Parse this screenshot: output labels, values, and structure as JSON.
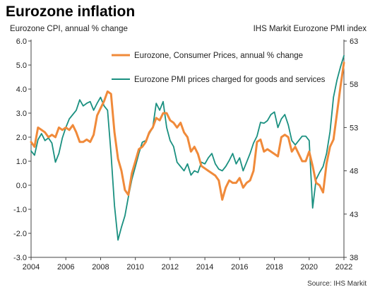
{
  "chart_data": {
    "type": "line",
    "title": "Eurozone inflation",
    "left_axis_label": "Eurozone CPI, annual % change",
    "right_axis_label": "IHS Markit Eurozone PMI index",
    "source": "Source: IHS Markit",
    "x_ticks": [
      "2004",
      "2006",
      "2008",
      "2010",
      "2012",
      "2014",
      "2016",
      "2018",
      "2020",
      "2022"
    ],
    "xlim": [
      2004.0,
      2022.0
    ],
    "ylim_left": [
      -3.0,
      6.0
    ],
    "ylim_right": [
      38,
      63
    ],
    "y_ticks_left": [
      "-3.0",
      "-2.0",
      "-1.0",
      "0.0",
      "1.0",
      "2.0",
      "3.0",
      "4.0",
      "5.0",
      "6.0"
    ],
    "y_ticks_right": [
      "38",
      "43",
      "48",
      "53",
      "58",
      "63"
    ],
    "grid": false,
    "legend_position": "top-right",
    "series": [
      {
        "name": "Eurozone, Consumer Prices, annual % change",
        "axis": "left",
        "color": "#f08a3a",
        "x": [
          2004.0,
          2004.2,
          2004.4,
          2004.6,
          2004.8,
          2005.0,
          2005.2,
          2005.4,
          2005.6,
          2005.8,
          2006.0,
          2006.2,
          2006.4,
          2006.6,
          2006.8,
          2007.0,
          2007.2,
          2007.4,
          2007.6,
          2007.8,
          2008.0,
          2008.2,
          2008.4,
          2008.6,
          2008.8,
          2009.0,
          2009.2,
          2009.4,
          2009.6,
          2009.8,
          2010.0,
          2010.2,
          2010.4,
          2010.6,
          2010.8,
          2011.0,
          2011.2,
          2011.4,
          2011.6,
          2011.8,
          2012.0,
          2012.2,
          2012.4,
          2012.6,
          2012.8,
          2013.0,
          2013.2,
          2013.4,
          2013.6,
          2013.8,
          2014.0,
          2014.2,
          2014.4,
          2014.6,
          2014.8,
          2015.0,
          2015.2,
          2015.4,
          2015.6,
          2015.8,
          2016.0,
          2016.2,
          2016.4,
          2016.6,
          2016.8,
          2017.0,
          2017.2,
          2017.4,
          2017.6,
          2017.8,
          2018.0,
          2018.2,
          2018.4,
          2018.6,
          2018.8,
          2019.0,
          2019.2,
          2019.4,
          2019.6,
          2019.8,
          2020.0,
          2020.2,
          2020.4,
          2020.6,
          2020.8,
          2021.0,
          2021.2,
          2021.4,
          2021.6,
          2021.8,
          2022.0
        ],
        "values": [
          1.8,
          1.6,
          2.4,
          2.3,
          2.2,
          2.0,
          2.1,
          2.0,
          2.4,
          2.3,
          2.4,
          2.3,
          2.5,
          2.2,
          1.8,
          1.8,
          1.9,
          1.8,
          2.1,
          2.9,
          3.2,
          3.5,
          3.9,
          3.8,
          2.2,
          1.1,
          0.6,
          -0.2,
          -0.4,
          0.5,
          1.0,
          1.5,
          1.6,
          1.8,
          2.2,
          2.4,
          2.8,
          2.7,
          3.0,
          3.0,
          2.7,
          2.6,
          2.4,
          2.6,
          2.2,
          2.0,
          1.4,
          1.6,
          1.3,
          0.8,
          0.7,
          0.6,
          0.5,
          0.4,
          0.2,
          -0.6,
          -0.1,
          0.2,
          0.1,
          0.1,
          0.3,
          -0.1,
          0.1,
          0.2,
          0.6,
          1.8,
          1.9,
          1.4,
          1.5,
          1.4,
          1.3,
          1.2,
          2.0,
          2.1,
          2.0,
          1.4,
          1.6,
          1.3,
          1.0,
          1.0,
          1.4,
          0.8,
          0.1,
          0.0,
          -0.3,
          0.9,
          1.6,
          1.9,
          3.0,
          4.1,
          5.1
        ]
      },
      {
        "name": "Eurozone PMI prices charged for goods and services",
        "axis": "right",
        "color": "#1a9080",
        "x": [
          2004.0,
          2004.2,
          2004.4,
          2004.6,
          2004.8,
          2005.0,
          2005.2,
          2005.4,
          2005.6,
          2005.8,
          2006.0,
          2006.2,
          2006.4,
          2006.6,
          2006.8,
          2007.0,
          2007.2,
          2007.4,
          2007.6,
          2007.8,
          2008.0,
          2008.2,
          2008.4,
          2008.6,
          2008.8,
          2009.0,
          2009.2,
          2009.4,
          2009.6,
          2009.8,
          2010.0,
          2010.2,
          2010.4,
          2010.6,
          2010.8,
          2011.0,
          2011.2,
          2011.4,
          2011.6,
          2011.8,
          2012.0,
          2012.2,
          2012.4,
          2012.6,
          2012.8,
          2013.0,
          2013.2,
          2013.4,
          2013.6,
          2013.8,
          2014.0,
          2014.2,
          2014.4,
          2014.6,
          2014.8,
          2015.0,
          2015.2,
          2015.4,
          2015.6,
          2015.8,
          2016.0,
          2016.2,
          2016.4,
          2016.6,
          2016.8,
          2017.0,
          2017.2,
          2017.4,
          2017.6,
          2017.8,
          2018.0,
          2018.2,
          2018.4,
          2018.6,
          2018.8,
          2019.0,
          2019.2,
          2019.4,
          2019.6,
          2019.8,
          2020.0,
          2020.2,
          2020.4,
          2020.6,
          2020.8,
          2021.0,
          2021.2,
          2021.4,
          2021.6,
          2021.8,
          2022.0
        ],
        "values": [
          50.3,
          49.8,
          51.6,
          52.3,
          51.5,
          51.8,
          51.2,
          49.0,
          50.0,
          51.8,
          53.0,
          54.0,
          54.5,
          55.0,
          56.2,
          55.5,
          55.8,
          56.0,
          55.0,
          55.8,
          56.5,
          55.5,
          55.0,
          50.0,
          44.0,
          40.0,
          41.5,
          42.8,
          45.0,
          47.0,
          48.5,
          50.0,
          51.3,
          51.5,
          52.3,
          53.0,
          55.8,
          55.0,
          56.0,
          53.0,
          51.5,
          50.8,
          49.0,
          48.5,
          48.0,
          48.8,
          47.5,
          48.0,
          47.8,
          49.0,
          48.8,
          49.5,
          50.0,
          48.8,
          48.2,
          48.0,
          48.5,
          49.2,
          50.0,
          48.8,
          49.5,
          48.0,
          49.0,
          50.0,
          51.2,
          52.0,
          53.6,
          53.5,
          53.8,
          54.5,
          54.8,
          53.0,
          54.0,
          54.5,
          53.3,
          51.5,
          51.0,
          51.5,
          52.0,
          52.0,
          51.5,
          43.7,
          47.0,
          47.8,
          48.5,
          50.0,
          52.5,
          56.5,
          58.5,
          60.0,
          61.3
        ]
      }
    ]
  }
}
